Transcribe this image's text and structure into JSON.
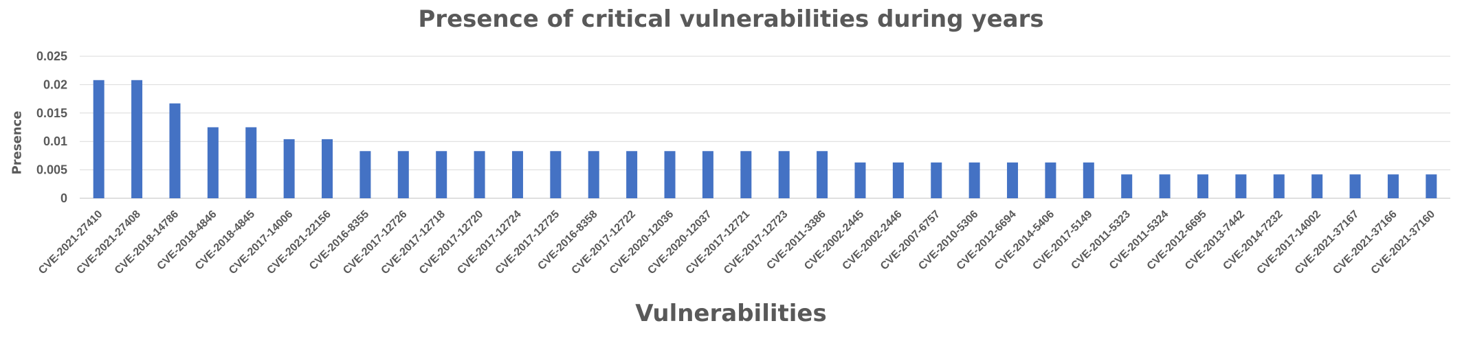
{
  "chart_data": {
    "type": "bar",
    "title": "Presence of critical vulnerabilities during years",
    "xlabel": "Vulnerabilities",
    "ylabel": "Presence",
    "ylim": [
      0,
      0.025
    ],
    "yticks": [
      "0",
      "0.005",
      "0.01",
      "0.015",
      "0.02",
      "0.025"
    ],
    "grid": true,
    "bar_color": "#4472C4",
    "categories": [
      "CVE-2021-27410",
      "CVE-2021-27408",
      "CVE-2018-14786",
      "CVE-2018-4846",
      "CVE-2018-4845",
      "CVE-2017-14006",
      "CVE-2021-22156",
      "CVE-2016-8355",
      "CVE-2017-12726",
      "CVE-2017-12718",
      "CVE-2017-12720",
      "CVE-2017-12724",
      "CVE-2017-12725",
      "CVE-2016-8358",
      "CVE-2017-12722",
      "CVE-2020-12036",
      "CVE-2020-12037",
      "CVE-2017-12721",
      "CVE-2017-12723",
      "CVE-2011-3386",
      "CVE-2002-2445",
      "CVE-2002-2446",
      "CVE-2007-6757",
      "CVE-2010-5306",
      "CVE-2012-6694",
      "CVE-2014-5406",
      "CVE-2017-5149",
      "CVE-2011-5323",
      "CVE-2011-5324",
      "CVE-2012-6695",
      "CVE-2013-7442",
      "CVE-2014-7232",
      "CVE-2017-14002",
      "CVE-2021-37167",
      "CVE-2021-37166",
      "CVE-2021-37160"
    ],
    "values": [
      0.0208,
      0.0208,
      0.0167,
      0.0125,
      0.0125,
      0.0104,
      0.0104,
      0.0083,
      0.0083,
      0.0083,
      0.0083,
      0.0083,
      0.0083,
      0.0083,
      0.0083,
      0.0083,
      0.0083,
      0.0083,
      0.0083,
      0.0083,
      0.0063,
      0.0063,
      0.0063,
      0.0063,
      0.0063,
      0.0063,
      0.0063,
      0.0042,
      0.0042,
      0.0042,
      0.0042,
      0.0042,
      0.0042,
      0.0042,
      0.0042,
      0.0042
    ]
  }
}
